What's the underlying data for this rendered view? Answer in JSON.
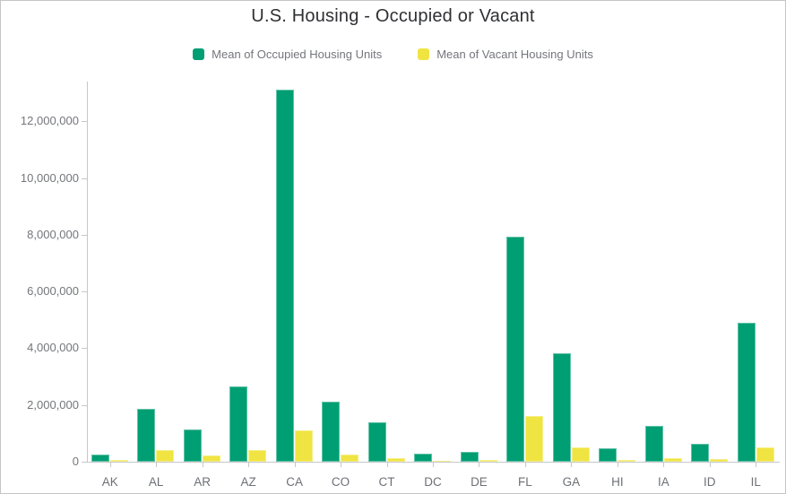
{
  "chart_data": {
    "type": "bar",
    "title": "U.S. Housing - Occupied or Vacant",
    "categories": [
      "AK",
      "AL",
      "AR",
      "AZ",
      "CA",
      "CO",
      "CT",
      "DC",
      "DE",
      "FL",
      "GA",
      "HI",
      "IA",
      "ID",
      "IL"
    ],
    "series": [
      {
        "name": "Mean of Occupied Housing Units",
        "color": "#009E73",
        "values": [
          240000,
          1870000,
          1150000,
          2640000,
          13110000,
          2120000,
          1390000,
          280000,
          360000,
          7940000,
          3830000,
          460000,
          1250000,
          630000,
          4890000
        ]
      },
      {
        "name": "Mean of Vacant Housing Units",
        "color": "#F0E442",
        "values": [
          50000,
          400000,
          230000,
          400000,
          1100000,
          240000,
          130000,
          40000,
          70000,
          1620000,
          490000,
          70000,
          130000,
          85000,
          490000
        ]
      }
    ],
    "xlabel": "",
    "ylabel": "",
    "ylim": [
      0,
      13400000
    ],
    "yticks": [
      0,
      2000000,
      4000000,
      6000000,
      8000000,
      10000000,
      12000000
    ],
    "ytick_labels": [
      "0",
      "2,000,000",
      "4,000,000",
      "6,000,000",
      "8,000,000",
      "10,000,000",
      "12,000,000"
    ],
    "grid": false,
    "legend_position": "top-center"
  },
  "colors": {
    "occupied": "#009E73",
    "vacant": "#F0E442",
    "title_text": "#2f3033",
    "axis_text": "#74767c",
    "axis_line": "#c5c7c9",
    "card_border": "#c5c5c7",
    "background": "#ffffff"
  }
}
